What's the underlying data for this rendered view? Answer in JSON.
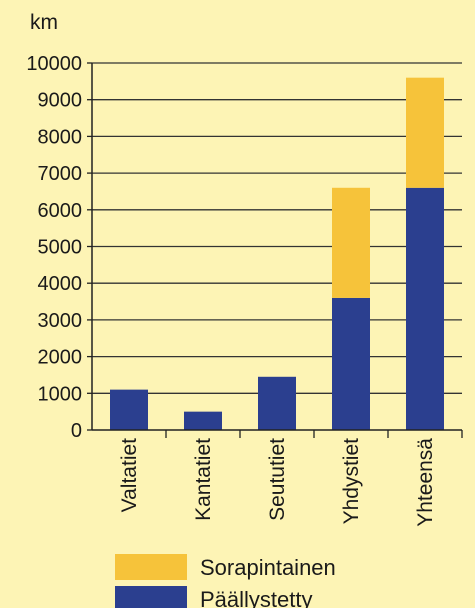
{
  "chart_data": {
    "type": "bar",
    "stacked": true,
    "ylabel": "km",
    "ylim": [
      0,
      10000
    ],
    "yticks": [
      0,
      1000,
      2000,
      3000,
      4000,
      5000,
      6000,
      7000,
      8000,
      9000,
      10000
    ],
    "grid": true,
    "categories": [
      "Valtatiet",
      "Kantatiet",
      "Seututiet",
      "Yhdystiet",
      "Yhteensä"
    ],
    "series": [
      {
        "name": "Päällystetty",
        "color": "#2b3f8f",
        "values": [
          1100,
          500,
          1450,
          3600,
          6600
        ]
      },
      {
        "name": "Sorapintainen",
        "color": "#f6c33a",
        "values": [
          0,
          0,
          0,
          3000,
          3000
        ]
      }
    ],
    "legend_placement": "bottom",
    "legend_order": [
      1,
      0
    ]
  }
}
